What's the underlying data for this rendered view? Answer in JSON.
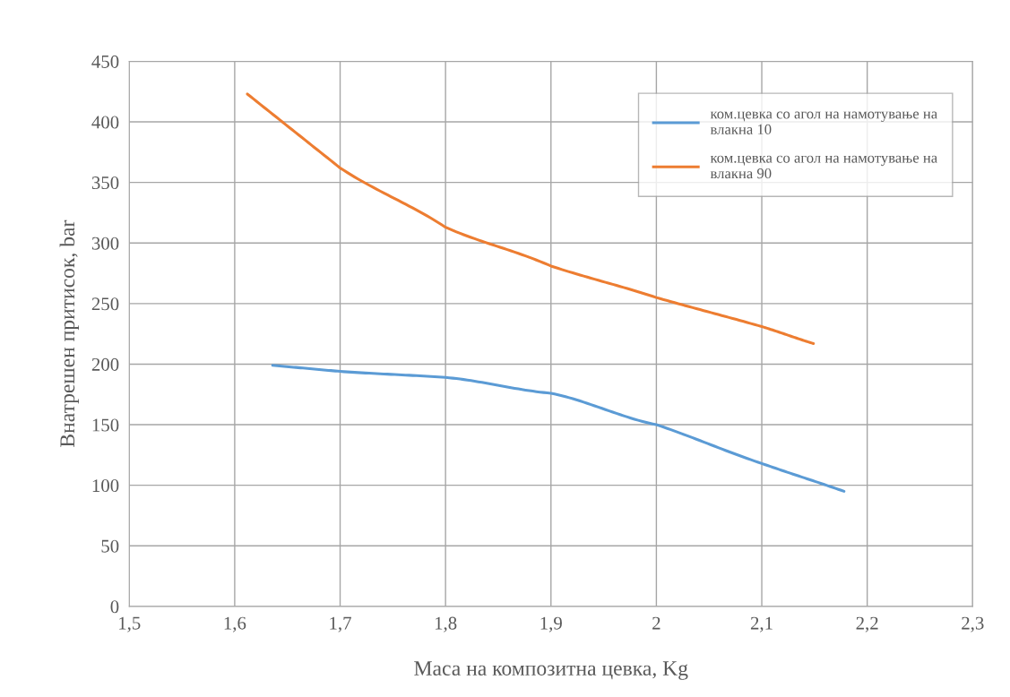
{
  "chart_data": {
    "type": "line",
    "xlabel": "Маса на композитна цевка, Kg",
    "ylabel": "Внатрешен притисок, bar",
    "series": [
      {
        "name": "ком.цевка со агол на намотување на\nвлакна 10",
        "color": "#5b9bd5",
        "x": [
          1.636,
          1.7,
          1.8,
          1.9,
          2.0,
          2.1,
          2.178
        ],
        "values": [
          199,
          194,
          189,
          176,
          150,
          118,
          95
        ]
      },
      {
        "name": "ком.цевка со агол на намотување на\nвлакна 90",
        "color": "#ed7d31",
        "x": [
          1.612,
          1.7,
          1.8,
          1.9,
          2.0,
          2.1,
          2.149
        ],
        "values": [
          423,
          362,
          313,
          281,
          255,
          231,
          217
        ]
      }
    ],
    "xlim": [
      1.5,
      2.3
    ],
    "xticks": [
      {
        "value": 1.5,
        "label": "1,5"
      },
      {
        "value": 1.6,
        "label": "1,6"
      },
      {
        "value": 1.7,
        "label": "1,7"
      },
      {
        "value": 1.8,
        "label": "1,8"
      },
      {
        "value": 1.9,
        "label": "1,9"
      },
      {
        "value": 2,
        "label": "2"
      },
      {
        "value": 2.1,
        "label": "2,1"
      },
      {
        "value": 2.2,
        "label": "2,2"
      },
      {
        "value": 2.3,
        "label": "2,3"
      }
    ],
    "ylim": [
      0,
      450
    ],
    "yticks": [
      0,
      50,
      100,
      150,
      200,
      250,
      300,
      350,
      400,
      450
    ],
    "grid": true,
    "legend": "top right",
    "marker": "none",
    "line_style": "solid"
  }
}
